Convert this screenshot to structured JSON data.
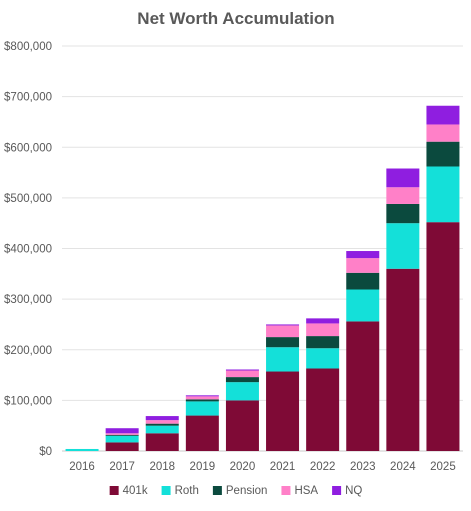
{
  "chart_data": {
    "type": "bar",
    "stacked": true,
    "title": "Net Worth Accumulation",
    "xlabel": "",
    "ylabel": "",
    "categories": [
      "2016",
      "2017",
      "2018",
      "2019",
      "2020",
      "2021",
      "2022",
      "2023",
      "2024",
      "2025"
    ],
    "ylim": [
      0,
      800000
    ],
    "yticks": [
      0,
      100000,
      200000,
      300000,
      400000,
      500000,
      600000,
      700000,
      800000
    ],
    "ytick_labels": [
      "$0",
      "$100,000",
      "$200,000",
      "$300,000",
      "$400,000",
      "$500,000",
      "$600,000",
      "$700,000",
      "$800,000"
    ],
    "grid": true,
    "legend_position": "bottom",
    "series": [
      {
        "name": "401k",
        "color": "#7f0a36",
        "values": [
          0,
          17000,
          35000,
          70000,
          100000,
          157000,
          163000,
          256000,
          360000,
          452000
        ]
      },
      {
        "name": "Roth",
        "color": "#14e0d9",
        "values": [
          4000,
          13000,
          15000,
          28000,
          36000,
          48000,
          40000,
          63000,
          90000,
          110000
        ]
      },
      {
        "name": "Pension",
        "color": "#0b4a3e",
        "values": [
          0,
          2000,
          4000,
          4000,
          10000,
          20000,
          24000,
          33000,
          38000,
          49000
        ]
      },
      {
        "name": "HSA",
        "color": "#ff80c8",
        "values": [
          0,
          3000,
          7000,
          6000,
          13000,
          23000,
          25000,
          29000,
          33000,
          34000
        ]
      },
      {
        "name": "NQ",
        "color": "#8f1ee0",
        "values": [
          0,
          10000,
          8000,
          2000,
          2000,
          2000,
          10000,
          14000,
          37000,
          37000
        ]
      }
    ]
  }
}
